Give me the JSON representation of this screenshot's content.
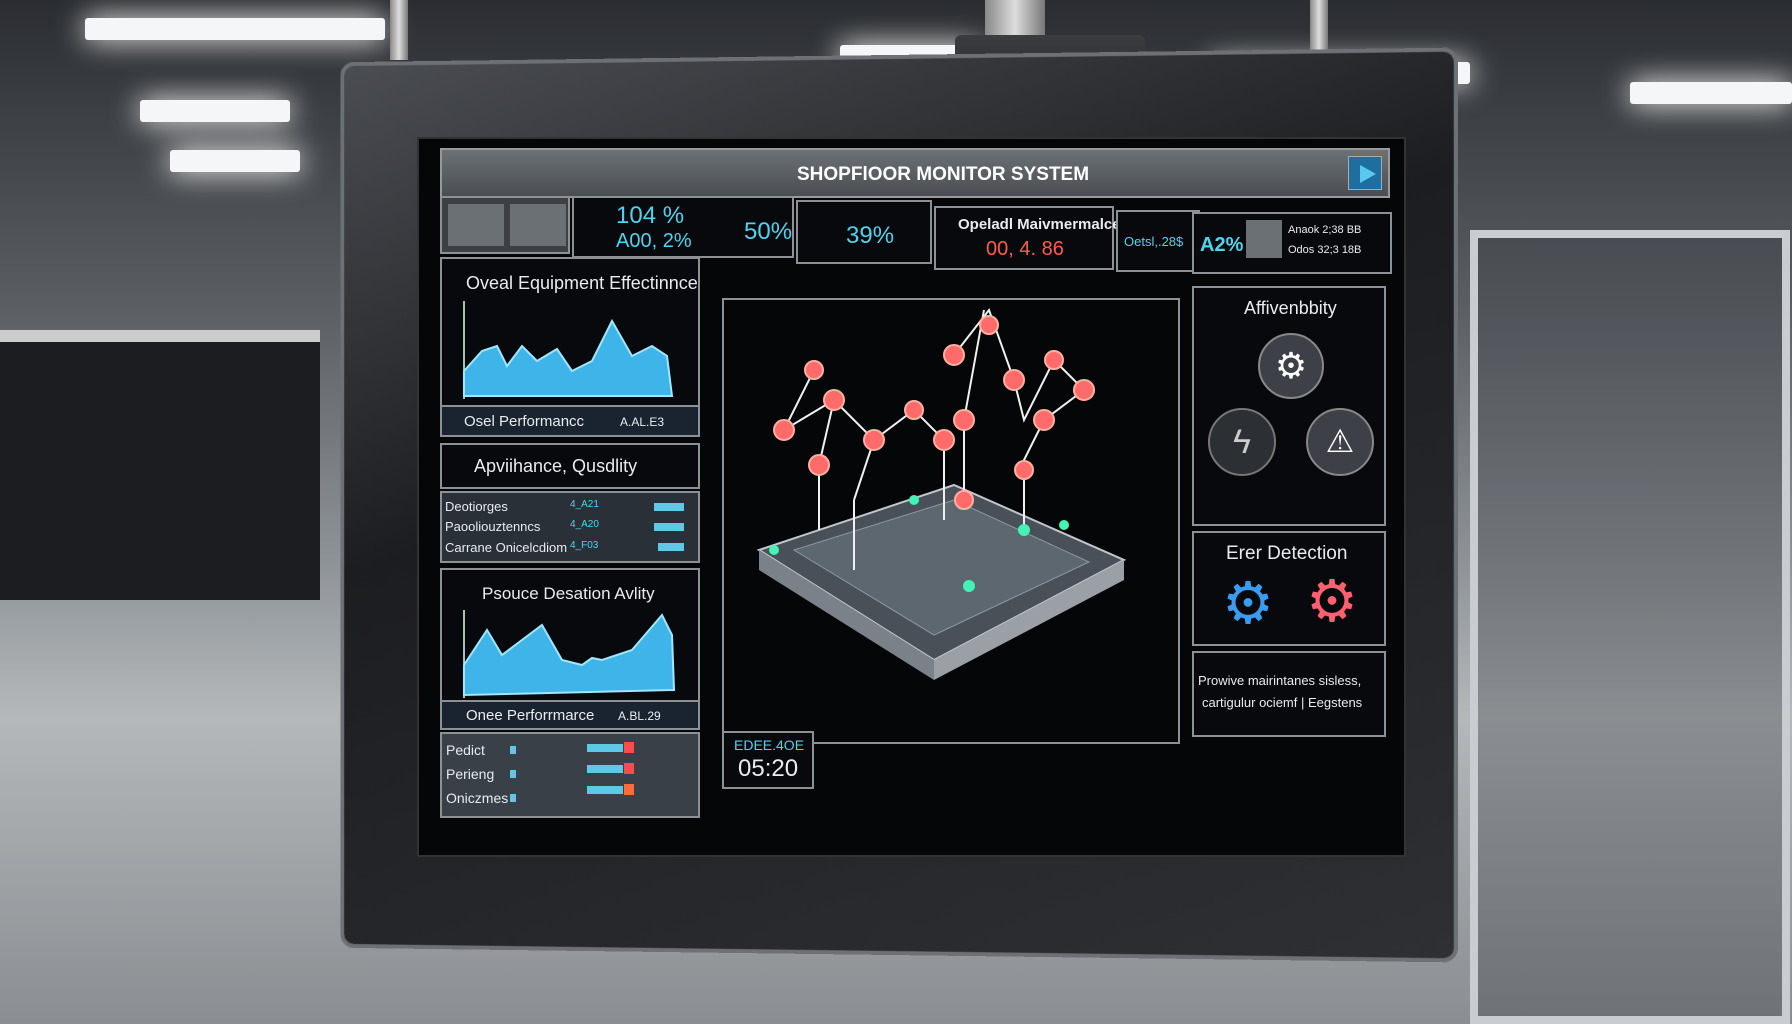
{
  "header": {
    "title": "SHOPFlOOR MONITOR SYSTEM"
  },
  "metrics": {
    "m1a": "104 %",
    "m1b": "A00, 2%",
    "m2": "50%",
    "m3": "39%",
    "maint_label": "Opeladl Maivmermalce",
    "maint_value": "00, 4. 86",
    "m5": "Oetsl,.28$",
    "m6": "A2%",
    "m7a": "Anaok 2;38 BB",
    "m7b": "Odos 32;3 18B"
  },
  "left": {
    "oee_title": "Oveal Equipment Effectinnce",
    "oee_footer": "Osel Performancc",
    "oee_footer_val": "A.AL.E3",
    "section2_title": "Apviihance, Qusdlity",
    "list1": [
      {
        "label": "Deotiorges",
        "value": "4_A21"
      },
      {
        "label": "Paooliouztenncs",
        "value": "4_A20"
      },
      {
        "label": "Carrane Onicelcdiom",
        "value": "4_F03"
      }
    ],
    "resource_title": "Psouce Desation Avlity",
    "resource_footer": "Onee Perforrmarce",
    "resource_footer_val": "A.BL.29",
    "list2": [
      {
        "label": "Pedict"
      },
      {
        "label": "Perieng"
      },
      {
        "label": "Oniczmes"
      }
    ]
  },
  "timer": {
    "label": "EDEE.4OE",
    "value": "05:20"
  },
  "right": {
    "avail_title": "Affivenbbity",
    "error_title": "Erer Detection",
    "note_line1": "Prowive mairintanes sisless,",
    "note_line2": "cartigulur ociemf | Eegstens"
  },
  "colors": {
    "accent": "#4fd4ef",
    "alert": "#ff5a4e",
    "chart_fill": "#3fb4e8"
  },
  "icons": [
    "bar-chart-icon",
    "play-icon",
    "gear-icon",
    "lightning-icon",
    "warning-icon"
  ]
}
